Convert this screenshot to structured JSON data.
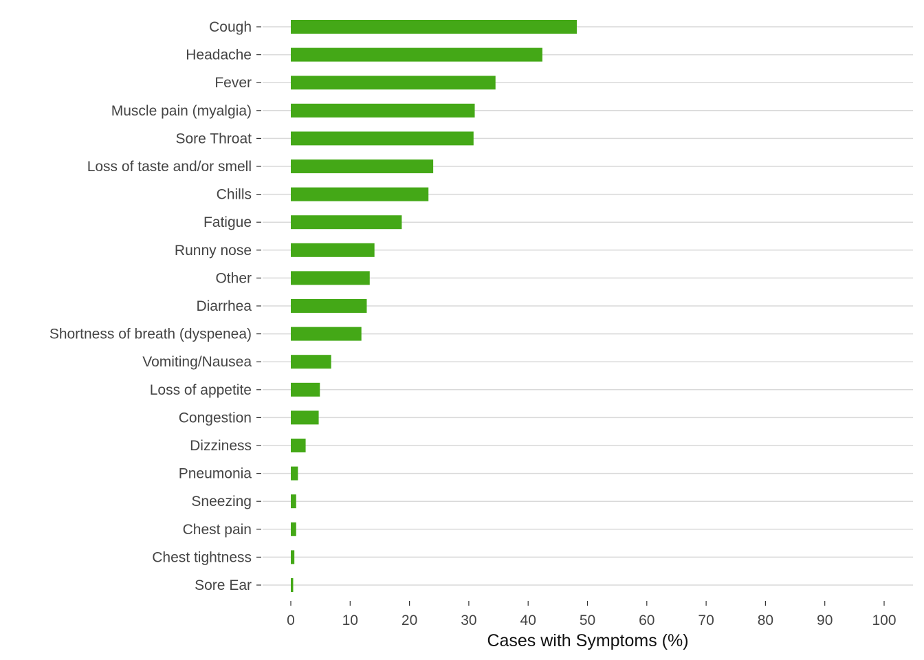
{
  "chart_data": {
    "type": "bar",
    "orientation": "horizontal",
    "title": "",
    "xlabel": "Cases with Symptoms (%)",
    "ylabel": "",
    "xlim": [
      0,
      100
    ],
    "xticks": [
      "0",
      "10",
      "20",
      "30",
      "40",
      "50",
      "60",
      "70",
      "80",
      "90",
      "100"
    ],
    "grid": "horizontal",
    "legend": "none",
    "bar_color": "#44a817",
    "categories": [
      "Cough",
      "Headache",
      "Fever",
      "Muscle pain (myalgia)",
      "Sore Throat",
      "Loss of taste and/or smell",
      "Chills",
      "Fatigue",
      "Runny nose",
      "Other",
      "Diarrhea",
      "Shortness of breath (dyspenea)",
      "Vomiting/Nausea",
      "Loss of appetite",
      "Congestion",
      "Dizziness",
      "Pneumonia",
      "Sneezing",
      "Chest pain",
      "Chest tightness",
      "Sore Ear"
    ],
    "values": [
      48.2,
      42.4,
      34.5,
      31.0,
      30.8,
      24.0,
      23.2,
      18.7,
      14.1,
      13.3,
      12.8,
      11.9,
      6.8,
      4.9,
      4.7,
      2.5,
      1.2,
      0.9,
      0.9,
      0.6,
      0.4
    ]
  }
}
